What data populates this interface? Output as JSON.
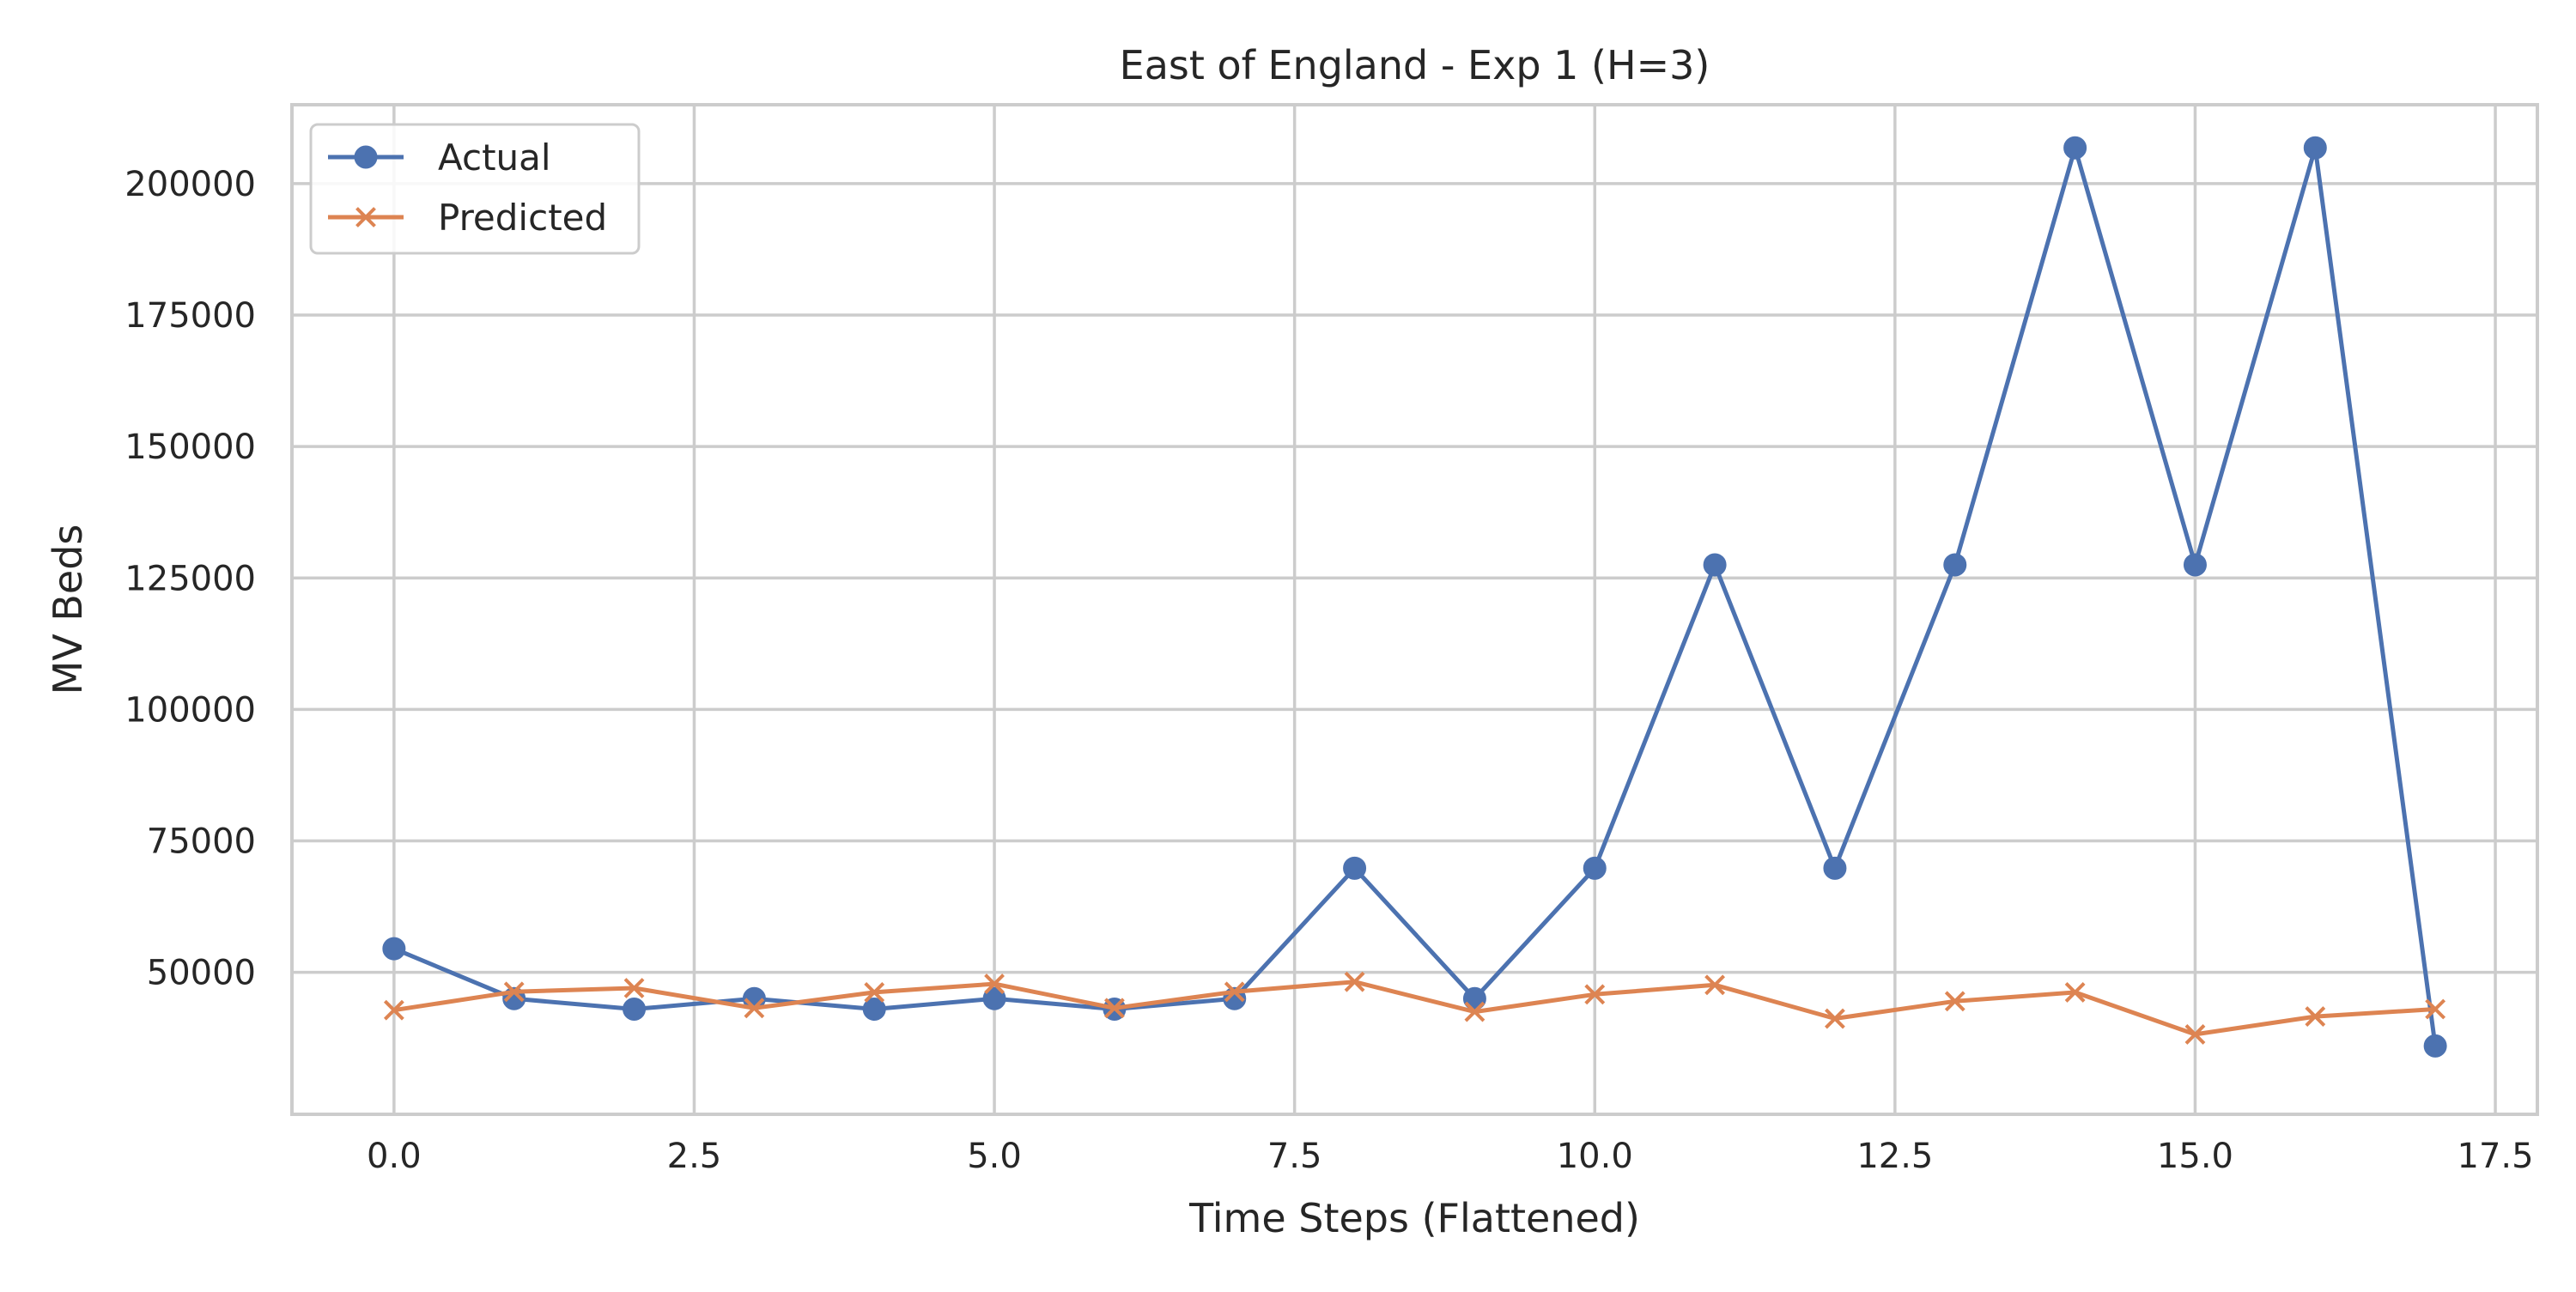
{
  "chart_data": {
    "type": "line",
    "title": "East of England - Exp 1 (H=3)",
    "xlabel": "Time Steps (Flattened)",
    "ylabel": "MV Beds",
    "xlim": [
      -0.85,
      17.85
    ],
    "ylim": [
      23000,
      215000
    ],
    "x_ticks": [
      0.0,
      2.5,
      5.0,
      7.5,
      10.0,
      12.5,
      15.0,
      17.5
    ],
    "x_tick_labels": [
      "0.0",
      "2.5",
      "5.0",
      "7.5",
      "10.0",
      "12.5",
      "15.0",
      "17.5"
    ],
    "y_ticks": [
      50000,
      75000,
      100000,
      125000,
      150000,
      175000,
      200000
    ],
    "y_tick_labels": [
      "50000",
      "75000",
      "100000",
      "125000",
      "150000",
      "175000",
      "200000"
    ],
    "grid": true,
    "legend_position": "top-left",
    "x": [
      0,
      1,
      2,
      3,
      4,
      5,
      6,
      7,
      8,
      9,
      10,
      11,
      12,
      13,
      14,
      15,
      16,
      17
    ],
    "series": [
      {
        "name": "Actual",
        "color": "#4c72b0",
        "marker": "circle",
        "values": [
          54500,
          45000,
          43000,
          45000,
          43000,
          45000,
          43000,
          45000,
          69800,
          45000,
          69800,
          127500,
          69800,
          127500,
          206800,
          127500,
          206800,
          36000
        ]
      },
      {
        "name": "Predicted",
        "color": "#dd8452",
        "marker": "x",
        "values": [
          42800,
          46300,
          47000,
          43200,
          46200,
          47800,
          43200,
          46300,
          48200,
          42500,
          45800,
          47600,
          41200,
          44500,
          46200,
          38200,
          41600,
          43000
        ]
      }
    ]
  }
}
